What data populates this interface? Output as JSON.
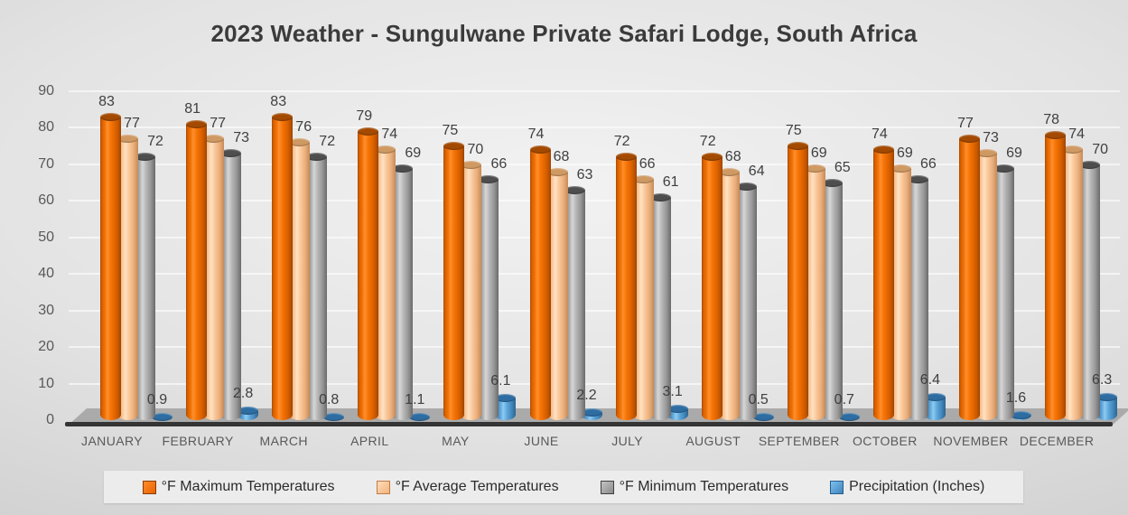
{
  "chart_data": {
    "type": "bar",
    "subtype": "3d-cylinder",
    "title": "2023 Weather - Sungulwane Private Safari Lodge, South Africa",
    "categories": [
      "JANUARY",
      "FEBRUARY",
      "MARCH",
      "APRIL",
      "MAY",
      "JUNE",
      "JULY",
      "AUGUST",
      "SEPTEMBER",
      "OCTOBER",
      "NOVEMBER",
      "DECEMBER"
    ],
    "series": [
      {
        "name": "°F Maximum Temperatures",
        "color": "#ED6C05",
        "values": [
          83,
          81,
          83,
          79,
          75,
          74,
          72,
          72,
          75,
          74,
          77,
          78
        ]
      },
      {
        "name": "°F Average Temperatures",
        "color": "#F8C499",
        "values": [
          77,
          77,
          76,
          74,
          70,
          68,
          66,
          68,
          69,
          69,
          73,
          74
        ]
      },
      {
        "name": "°F Minimum Temperatures",
        "color": "#A6A6A6",
        "values": [
          72,
          73,
          72,
          69,
          66,
          63,
          61,
          64,
          65,
          66,
          69,
          70
        ]
      },
      {
        "name": "Precipitation (Inches)",
        "color": "#4E96D4",
        "values": [
          0.9,
          2.8,
          0.8,
          1.1,
          6.1,
          2.2,
          3.1,
          0.5,
          0.7,
          6.4,
          1.6,
          6.3
        ]
      }
    ],
    "y_ticks": [
      0,
      10,
      20,
      30,
      40,
      50,
      60,
      70,
      80,
      90
    ],
    "ylim": [
      0,
      90
    ],
    "xlabel": "",
    "ylabel": "",
    "grid": true,
    "legend_position": "bottom",
    "data_labels": true
  }
}
